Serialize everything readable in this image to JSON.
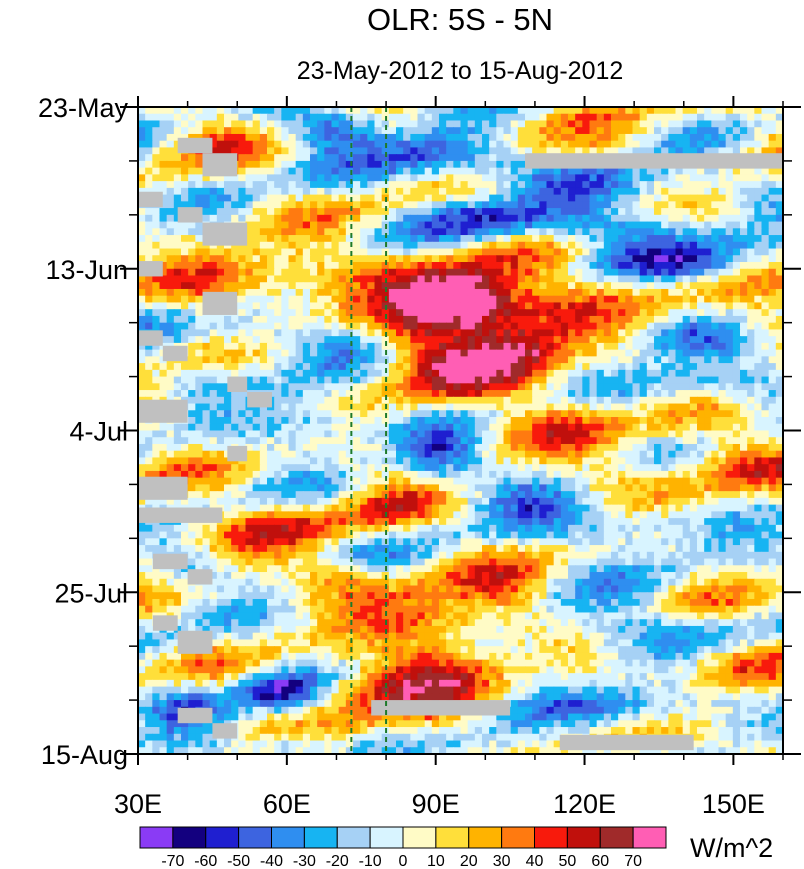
{
  "chart_data": {
    "type": "heatmap",
    "title": "OLR: 5S - 5N",
    "subtitle": "23-May-2012 to 15-Aug-2012",
    "x_axis": {
      "range": [
        30,
        160
      ],
      "ticks": [
        30,
        60,
        90,
        120,
        150
      ],
      "tick_labels": [
        "30E",
        "60E",
        "90E",
        "120E",
        "150E"
      ],
      "minor_step": 10
    },
    "y_axis": {
      "range_days": [
        0,
        84
      ],
      "ticks": [
        0,
        21,
        42,
        63,
        84
      ],
      "tick_labels": [
        "23-May",
        "13-Jun",
        "4-Jul",
        "25-Jul",
        "15-Aug"
      ],
      "minor_step_days": 7
    },
    "reference_lines": [
      {
        "lon": 73,
        "style": "dashed",
        "color": "#1e7a2a"
      },
      {
        "lon": 80,
        "style": "dashed",
        "color": "#1e7a2a"
      }
    ],
    "colorbar": {
      "label": "W/m^2",
      "levels": [
        -70,
        -60,
        -50,
        -40,
        -30,
        -20,
        -10,
        0,
        10,
        20,
        30,
        40,
        50,
        60,
        70
      ],
      "level_labels": [
        "-70",
        "-60",
        "-50",
        "-40",
        "-30",
        "-20",
        "-10",
        "0",
        "10",
        "20",
        "30",
        "40",
        "50",
        "60",
        "70"
      ],
      "colors": [
        "#8a3bf5",
        "#13007f",
        "#1f1fd0",
        "#3d64e0",
        "#2f8ef0",
        "#17b4f2",
        "#a6d1f5",
        "#d8f4ff",
        "#fffbc6",
        "#ffdf3a",
        "#ffb300",
        "#ff7a10",
        "#f81a0c",
        "#c0100c",
        "#a02a2a",
        "#ff5eb4"
      ]
    },
    "missing_color": "#c0c0c0",
    "features": [
      {
        "lon": 95,
        "day": 25,
        "value": 65,
        "sx": 11,
        "sy": 3.5
      },
      {
        "lon": 88,
        "day": 24,
        "value": 40,
        "sx": 20,
        "sy": 5
      },
      {
        "lon": 110,
        "day": 26,
        "value": 40,
        "sx": 22,
        "sy": 6
      },
      {
        "lon": 60,
        "day": 23,
        "value": 30,
        "sx": 12,
        "sy": 5
      },
      {
        "lon": 45,
        "day": 22,
        "value": 25,
        "sx": 10,
        "sy": 5
      },
      {
        "lon": 90,
        "day": 32,
        "value": 55,
        "sx": 14,
        "sy": 3.5
      },
      {
        "lon": 108,
        "day": 31,
        "value": 45,
        "sx": 10,
        "sy": 4
      },
      {
        "lon": 115,
        "day": 40,
        "value": 35,
        "sx": 12,
        "sy": 4
      },
      {
        "lon": 95,
        "day": 36,
        "value": 30,
        "sx": 12,
        "sy": 3.5
      },
      {
        "lon": 155,
        "day": 28,
        "value": 40,
        "sx": 10,
        "sy": 3
      },
      {
        "lon": 150,
        "day": 45,
        "value": 30,
        "sx": 14,
        "sy": 5
      },
      {
        "lon": 130,
        "day": 48,
        "value": 25,
        "sx": 12,
        "sy": 4
      },
      {
        "lon": 60,
        "day": 54,
        "value": 30,
        "sx": 12,
        "sy": 3
      },
      {
        "lon": 80,
        "day": 52,
        "value": 30,
        "sx": 10,
        "sy": 4
      },
      {
        "lon": 75,
        "day": 61,
        "value": 35,
        "sx": 14,
        "sy": 3
      },
      {
        "lon": 90,
        "day": 66,
        "value": 50,
        "sx": 14,
        "sy": 3.5
      },
      {
        "lon": 105,
        "day": 63,
        "value": 35,
        "sx": 10,
        "sy": 3
      },
      {
        "lon": 90,
        "day": 73,
        "value": 60,
        "sx": 12,
        "sy": 3.5
      },
      {
        "lon": 75,
        "day": 75,
        "value": 45,
        "sx": 10,
        "sy": 3
      },
      {
        "lon": 85,
        "day": 80,
        "value": 30,
        "sx": 15,
        "sy": 3
      },
      {
        "lon": 150,
        "day": 73,
        "value": 40,
        "sx": 10,
        "sy": 3
      },
      {
        "lon": 155,
        "day": 84,
        "value": 30,
        "sx": 8,
        "sy": 3
      },
      {
        "lon": 45,
        "day": 4,
        "value": 30,
        "sx": 10,
        "sy": 3
      },
      {
        "lon": 115,
        "day": 5,
        "value": 25,
        "sx": 12,
        "sy": 3
      },
      {
        "lon": 155,
        "day": 3,
        "value": 20,
        "sx": 10,
        "sy": 4
      },
      {
        "lon": 42,
        "day": 56,
        "value": 20,
        "sx": 12,
        "sy": 6
      },
      {
        "lon": 70,
        "day": 3,
        "value": -50,
        "sx": 10,
        "sy": 3
      },
      {
        "lon": 90,
        "day": 6,
        "value": -55,
        "sx": 12,
        "sy": 3
      },
      {
        "lon": 120,
        "day": 9,
        "value": -40,
        "sx": 25,
        "sy": 3
      },
      {
        "lon": 125,
        "day": 16,
        "value": -45,
        "sx": 25,
        "sy": 2.5
      },
      {
        "lon": 140,
        "day": 20,
        "value": -40,
        "sx": 20,
        "sy": 2.5
      },
      {
        "lon": 55,
        "day": 30,
        "value": -45,
        "sx": 10,
        "sy": 2.5
      },
      {
        "lon": 70,
        "day": 30,
        "value": -35,
        "sx": 10,
        "sy": 3
      },
      {
        "lon": 65,
        "day": 40,
        "value": -40,
        "sx": 10,
        "sy": 4
      },
      {
        "lon": 90,
        "day": 45,
        "value": -55,
        "sx": 8,
        "sy": 3
      },
      {
        "lon": 140,
        "day": 30,
        "value": -40,
        "sx": 15,
        "sy": 3
      },
      {
        "lon": 145,
        "day": 36,
        "value": -35,
        "sx": 15,
        "sy": 3
      },
      {
        "lon": 110,
        "day": 51,
        "value": -35,
        "sx": 12,
        "sy": 3
      },
      {
        "lon": 130,
        "day": 55,
        "value": -35,
        "sx": 15,
        "sy": 3
      },
      {
        "lon": 40,
        "day": 59,
        "value": -30,
        "sx": 8,
        "sy": 3
      },
      {
        "lon": 58,
        "day": 76,
        "value": -60,
        "sx": 8,
        "sy": 2.5
      },
      {
        "lon": 40,
        "day": 78,
        "value": -40,
        "sx": 8,
        "sy": 3
      },
      {
        "lon": 125,
        "day": 67,
        "value": -40,
        "sx": 15,
        "sy": 3
      },
      {
        "lon": 130,
        "day": 78,
        "value": -40,
        "sx": 15,
        "sy": 3
      },
      {
        "lon": 105,
        "day": 83,
        "value": -30,
        "sx": 12,
        "sy": 2
      },
      {
        "lon": 60,
        "day": 83,
        "value": -30,
        "sx": 8,
        "sy": 2
      },
      {
        "lon": 80,
        "day": 60,
        "value": -20,
        "sx": 8,
        "sy": 3
      },
      {
        "lon": 100,
        "day": 14,
        "value": -35,
        "sx": 14,
        "sy": 2.5
      }
    ],
    "missing_blocks": [
      {
        "lon0": 108,
        "lon1": 160,
        "day0": 6,
        "day1": 8
      },
      {
        "lon0": 30,
        "lon1": 47,
        "day0": 52,
        "day1": 54
      },
      {
        "lon0": 77,
        "lon1": 105,
        "day0": 77,
        "day1": 79
      },
      {
        "lon0": 115,
        "lon1": 142,
        "day0": 81.5,
        "day1": 83.5
      },
      {
        "lon0": 38,
        "lon1": 45,
        "day0": 4,
        "day1": 6
      },
      {
        "lon0": 43,
        "lon1": 50,
        "day0": 6,
        "day1": 9
      },
      {
        "lon0": 30,
        "lon1": 35,
        "day0": 11,
        "day1": 13
      },
      {
        "lon0": 38,
        "lon1": 43,
        "day0": 13,
        "day1": 15
      },
      {
        "lon0": 43,
        "lon1": 52,
        "day0": 15,
        "day1": 18
      },
      {
        "lon0": 30,
        "lon1": 35,
        "day0": 20,
        "day1": 22
      },
      {
        "lon0": 43,
        "lon1": 50,
        "day0": 24,
        "day1": 27
      },
      {
        "lon0": 30,
        "lon1": 35,
        "day0": 29,
        "day1": 31
      },
      {
        "lon0": 35,
        "lon1": 40,
        "day0": 31,
        "day1": 33
      },
      {
        "lon0": 48,
        "lon1": 52,
        "day0": 35,
        "day1": 37
      },
      {
        "lon0": 52,
        "lon1": 57,
        "day0": 37,
        "day1": 39
      },
      {
        "lon0": 30,
        "lon1": 40,
        "day0": 38,
        "day1": 41
      },
      {
        "lon0": 48,
        "lon1": 52,
        "day0": 44,
        "day1": 46
      },
      {
        "lon0": 30,
        "lon1": 40,
        "day0": 48,
        "day1": 51
      },
      {
        "lon0": 33,
        "lon1": 40,
        "day0": 58,
        "day1": 60
      },
      {
        "lon0": 40,
        "lon1": 45,
        "day0": 60,
        "day1": 62
      },
      {
        "lon0": 33,
        "lon1": 38,
        "day0": 66,
        "day1": 68
      },
      {
        "lon0": 38,
        "lon1": 45,
        "day0": 68,
        "day1": 71
      },
      {
        "lon0": 38,
        "lon1": 45,
        "day0": 78,
        "day1": 80
      },
      {
        "lon0": 45,
        "lon1": 50,
        "day0": 80,
        "day1": 82
      }
    ]
  }
}
